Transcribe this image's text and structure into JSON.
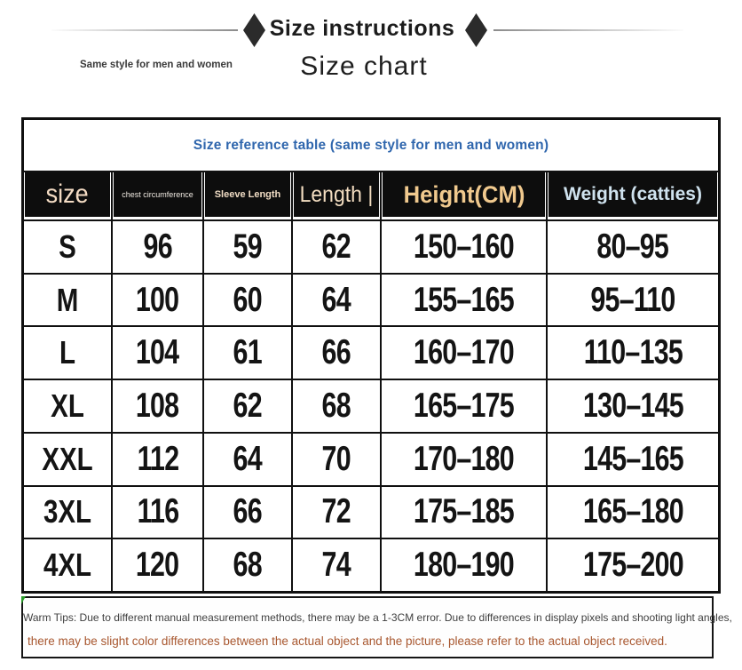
{
  "banner": {
    "title": "Size instructions",
    "subtitle_left": "Same style for men and women",
    "page_title": "Size chart",
    "diamond_color": "#2b2b2b"
  },
  "table": {
    "caption": "Size reference table (same style for men and women)",
    "caption_color": "#2f66ad",
    "headers": [
      {
        "label": "size",
        "color": "#f4dcc4"
      },
      {
        "label": "chest circumference",
        "color": "#eee8e0"
      },
      {
        "label": "Sleeve Length",
        "color": "#f0dcc4"
      },
      {
        "label": "Length |",
        "color": "#f2dcc0"
      },
      {
        "label": "Height(CM)",
        "color": "#f0c98e"
      },
      {
        "label": "Weight (catties)",
        "color": "#cfe2ee"
      }
    ],
    "rows": [
      {
        "size": "S",
        "chest": "96",
        "sleeve": "59",
        "length": "62",
        "height": "150–160",
        "weight": "80–95"
      },
      {
        "size": "M",
        "chest": "100",
        "sleeve": "60",
        "length": "64",
        "height": "155–165",
        "weight": "95–110"
      },
      {
        "size": "L",
        "chest": "104",
        "sleeve": "61",
        "length": "66",
        "height": "160–170",
        "weight": "110–135"
      },
      {
        "size": "XL",
        "chest": "108",
        "sleeve": "62",
        "length": "68",
        "height": "165–175",
        "weight": "130–145"
      },
      {
        "size": "XXL",
        "chest": "112",
        "sleeve": "64",
        "length": "70",
        "height": "170–180",
        "weight": "145–165"
      },
      {
        "size": "3XL",
        "chest": "116",
        "sleeve": "66",
        "length": "72",
        "height": "175–185",
        "weight": "165–180"
      },
      {
        "size": "4XL",
        "chest": "120",
        "sleeve": "68",
        "length": "74",
        "height": "180–190",
        "weight": "175–200"
      }
    ]
  },
  "warm_tips": {
    "line1": "Warm Tips: Due to different manual measurement methods, there may be a 1-3CM error. Due to differences in display pixels and shooting light angles,",
    "line1_color": "#3f3f3f",
    "line2": "there may be slight color differences between the actual object and the picture, please refer to the actual object received.",
    "line2_color": "#a8572f"
  }
}
